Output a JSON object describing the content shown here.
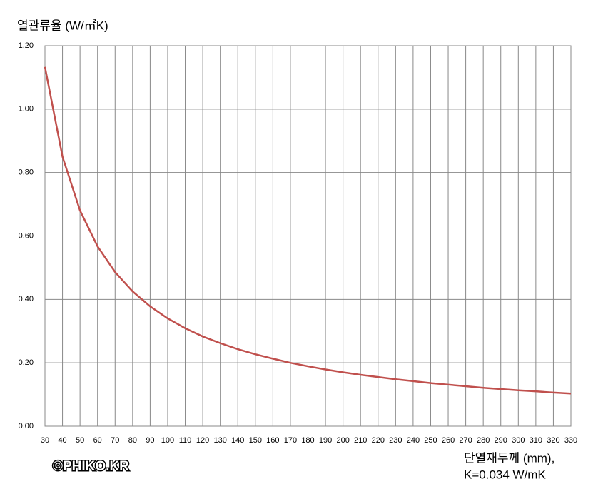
{
  "chart_data": {
    "type": "line",
    "ylabel": "열관류율 (W/㎡K)",
    "xlabel": [
      "단열재두께 (mm),",
      "K=0.034 W/mK"
    ],
    "watermark": "©PHIKO.KR",
    "x": [
      30,
      40,
      50,
      60,
      70,
      80,
      90,
      100,
      110,
      120,
      130,
      140,
      150,
      160,
      170,
      180,
      190,
      200,
      210,
      220,
      230,
      240,
      250,
      260,
      270,
      280,
      290,
      300,
      310,
      320,
      330
    ],
    "series": [
      {
        "color": "#c0504d",
        "values": [
          1.133,
          0.85,
          0.68,
          0.567,
          0.486,
          0.425,
          0.378,
          0.34,
          0.309,
          0.283,
          0.262,
          0.243,
          0.227,
          0.213,
          0.2,
          0.189,
          0.179,
          0.17,
          0.162,
          0.155,
          0.148,
          0.142,
          0.136,
          0.131,
          0.126,
          0.121,
          0.117,
          0.113,
          0.11,
          0.106,
          0.103
        ]
      }
    ],
    "xlim": [
      30,
      330
    ],
    "xticks": [
      30,
      40,
      50,
      60,
      70,
      80,
      90,
      100,
      110,
      120,
      130,
      140,
      150,
      160,
      170,
      180,
      190,
      200,
      210,
      220,
      230,
      240,
      250,
      260,
      270,
      280,
      290,
      300,
      310,
      320,
      330
    ],
    "ylim": [
      0,
      1.2
    ],
    "yticks": [
      {
        "value": 0,
        "label": "0.00"
      },
      {
        "value": 0.2,
        "label": "0.20"
      },
      {
        "value": 0.4,
        "label": "0.40"
      },
      {
        "value": 0.6,
        "label": "0.60"
      },
      {
        "value": 0.8,
        "label": "0.80"
      },
      {
        "value": 1.0,
        "label": "1.00"
      },
      {
        "value": 1.2,
        "label": "1.20"
      }
    ],
    "grid": true
  }
}
